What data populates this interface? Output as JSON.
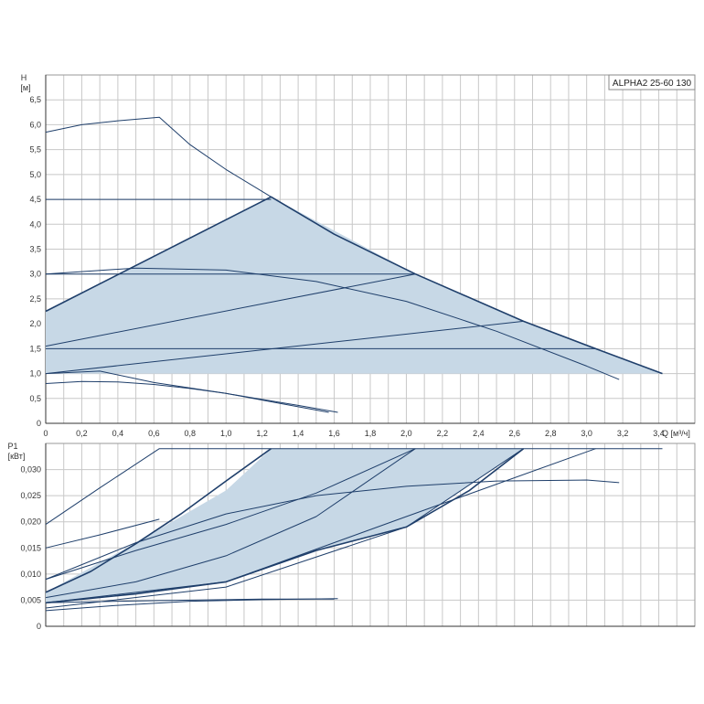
{
  "chart_data": [
    {
      "type": "line",
      "title": "ALPHA2 25-60 130",
      "ylabel": "H",
      "yunit": "[м]",
      "xlabel": "Q",
      "xunit": "[м³/ч]",
      "xlim": [
        0,
        3.6
      ],
      "ylim": [
        0,
        7.0
      ],
      "xticks": [
        "0",
        "0,2",
        "0,4",
        "0,6",
        "0,8",
        "1,0",
        "1,2",
        "1,4",
        "1,6",
        "1,8",
        "2,0",
        "2,2",
        "2,4",
        "2,6",
        "2,8",
        "3,0",
        "3,2",
        "3,4"
      ],
      "yticks": [
        "0",
        "0,5",
        "1,0",
        "1,5",
        "2,0",
        "2,5",
        "3,0",
        "3,5",
        "4,0",
        "4,5",
        "5,0",
        "5,5",
        "6,0",
        "6,5"
      ],
      "grid": true,
      "shaded_region": [
        [
          0,
          1.0
        ],
        [
          0,
          2.25
        ],
        [
          1.25,
          4.55
        ],
        [
          2.05,
          3.0
        ],
        [
          2.65,
          2.05
        ],
        [
          3.42,
          1.0
        ]
      ],
      "series": [
        {
          "style": "bold",
          "x": [
            0,
            1.25,
            1.6,
            2.05,
            2.65,
            3.05,
            3.42
          ],
          "y": [
            2.25,
            4.55,
            3.8,
            3.0,
            2.05,
            1.5,
            1.0
          ]
        },
        {
          "style": "thin",
          "x": [
            0,
            0.2,
            0.4,
            0.63,
            0.8,
            1.0,
            1.25
          ],
          "y": [
            5.85,
            6.0,
            6.08,
            6.15,
            5.6,
            5.1,
            4.55
          ]
        },
        {
          "style": "thin",
          "x": [
            0,
            1.25
          ],
          "y": [
            4.5,
            4.5
          ]
        },
        {
          "style": "thin",
          "x": [
            0,
            2.05
          ],
          "y": [
            3.0,
            3.0
          ]
        },
        {
          "style": "thin",
          "x": [
            0,
            3.05
          ],
          "y": [
            1.5,
            1.5
          ]
        },
        {
          "style": "thin",
          "x": [
            0,
            2.05
          ],
          "y": [
            1.55,
            3.0
          ]
        },
        {
          "style": "thin",
          "x": [
            0,
            2.65
          ],
          "y": [
            1.0,
            2.05
          ]
        },
        {
          "style": "thin",
          "x": [
            0,
            0.5,
            1.0,
            1.5,
            2.0,
            2.5,
            3.0,
            3.18
          ],
          "y": [
            3.0,
            3.12,
            3.08,
            2.85,
            2.45,
            1.85,
            1.15,
            0.88
          ]
        },
        {
          "style": "thin",
          "x": [
            0,
            0.2,
            0.4,
            0.6,
            0.8,
            1.0,
            1.2,
            1.4,
            1.62
          ],
          "y": [
            0.8,
            0.84,
            0.83,
            0.78,
            0.7,
            0.6,
            0.48,
            0.36,
            0.22
          ]
        },
        {
          "style": "thin",
          "x": [
            0,
            0.3,
            0.6,
            1.0,
            1.3,
            1.57
          ],
          "y": [
            1.0,
            1.05,
            0.82,
            0.6,
            0.4,
            0.22
          ]
        }
      ]
    },
    {
      "type": "line",
      "ylabel": "P1",
      "yunit": "[кВт]",
      "xlim": [
        0,
        3.6
      ],
      "ylim": [
        0,
        0.035
      ],
      "yticks": [
        "0",
        "0,005",
        "0,010",
        "0,015",
        "0,020",
        "0,025",
        "0,030"
      ],
      "grid": true,
      "shaded_region": [
        [
          0,
          0.0065
        ],
        [
          0.5,
          0.016
        ],
        [
          1.0,
          0.026
        ],
        [
          1.25,
          0.034
        ],
        [
          2.65,
          0.034
        ],
        [
          2.0,
          0.019
        ],
        [
          1.5,
          0.0145
        ],
        [
          1.0,
          0.0085
        ],
        [
          0.5,
          0.0062
        ],
        [
          0,
          0.0045
        ]
      ],
      "series": [
        {
          "style": "thin",
          "x": [
            0,
            0.3,
            0.63,
            3.42
          ],
          "y": [
            0.0195,
            0.0265,
            0.034,
            0.034
          ]
        },
        {
          "style": "thin",
          "x": [
            0,
            0.3,
            0.63
          ],
          "y": [
            0.015,
            0.0175,
            0.0205
          ]
        },
        {
          "style": "bold",
          "x": [
            0,
            0.25,
            0.5,
            0.75,
            1.0,
            1.25
          ],
          "y": [
            0.0065,
            0.0105,
            0.0158,
            0.0215,
            0.0278,
            0.034
          ]
        },
        {
          "style": "thin",
          "x": [
            0,
            0.5,
            1.0,
            1.5,
            2.05
          ],
          "y": [
            0.009,
            0.0145,
            0.0195,
            0.0255,
            0.034
          ]
        },
        {
          "style": "thin",
          "x": [
            0,
            0.5,
            1.0,
            1.5,
            2.05
          ],
          "y": [
            0.0055,
            0.0085,
            0.0135,
            0.021,
            0.034
          ]
        },
        {
          "style": "bold",
          "x": [
            0,
            0.5,
            1.0,
            1.5,
            2.0,
            2.35,
            2.65
          ],
          "y": [
            0.0045,
            0.0062,
            0.0085,
            0.0145,
            0.019,
            0.026,
            0.034
          ]
        },
        {
          "style": "thin",
          "x": [
            0,
            1.0,
            2.0,
            2.65
          ],
          "y": [
            0.0035,
            0.0075,
            0.019,
            0.034
          ]
        },
        {
          "style": "thin",
          "x": [
            0,
            1.0,
            2.0,
            3.05
          ],
          "y": [
            0.0045,
            0.0085,
            0.021,
            0.034
          ]
        },
        {
          "style": "thin",
          "x": [
            0,
            0.5,
            1.0,
            1.5,
            2.0,
            2.5,
            3.0,
            3.18
          ],
          "y": [
            0.009,
            0.016,
            0.0215,
            0.025,
            0.0268,
            0.0278,
            0.028,
            0.0275
          ]
        },
        {
          "style": "thin",
          "x": [
            0,
            0.4,
            0.8,
            1.2,
            1.6
          ],
          "y": [
            0.0045,
            0.0048,
            0.005,
            0.0052,
            0.0052
          ]
        },
        {
          "style": "thin",
          "x": [
            0,
            0.4,
            0.8,
            1.2,
            1.62
          ],
          "y": [
            0.003,
            0.004,
            0.0048,
            0.0051,
            0.0053
          ]
        }
      ]
    }
  ]
}
